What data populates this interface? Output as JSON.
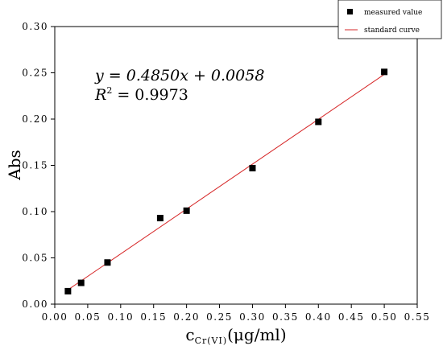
{
  "chart_data": {
    "type": "scatter",
    "title": "",
    "xlabel": {
      "base": "c",
      "subscript": "Cr(VI)",
      "unit": "(μg/ml)"
    },
    "ylabel": "Abs",
    "xlim": [
      0.0,
      0.55
    ],
    "ylim": [
      0.0,
      0.3
    ],
    "x_ticks": [
      "0.00",
      "0.05",
      "0.10",
      "0.15",
      "0.20",
      "0.25",
      "0.30",
      "0.35",
      "0.40",
      "0.45",
      "0.50",
      "0.55"
    ],
    "y_ticks": [
      "0.00",
      "0.05",
      "0.10",
      "0.15",
      "0.20",
      "0.25",
      "0.30"
    ],
    "grid": false,
    "legend_position": "top-right",
    "series": [
      {
        "name": "measured value",
        "kind": "scatter",
        "color": "#000000",
        "marker": "square",
        "x": [
          0.02,
          0.04,
          0.08,
          0.16,
          0.2,
          0.3,
          0.4,
          0.5
        ],
        "y": [
          0.014,
          0.023,
          0.045,
          0.093,
          0.101,
          0.147,
          0.197,
          0.251
        ]
      },
      {
        "name": "standard curve",
        "kind": "line",
        "color": "#d62728",
        "slope": 0.485,
        "intercept": 0.0058,
        "x_range": [
          0.02,
          0.5
        ]
      }
    ],
    "annotation": {
      "equation": "y = 0.4850x + 0.0058",
      "r2_label": "R",
      "r2_exponent": "2",
      "r2_value": " = 0.9973"
    }
  }
}
